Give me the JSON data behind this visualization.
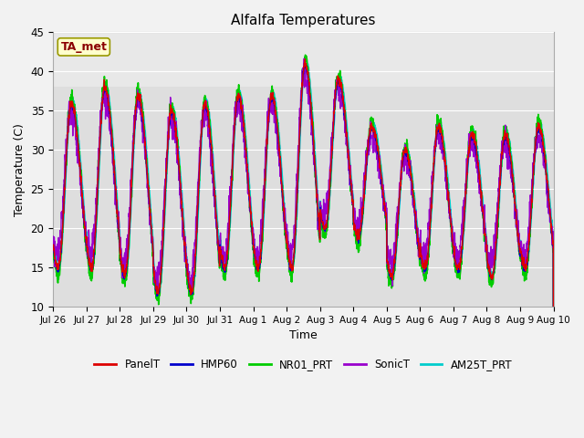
{
  "title": "Alfalfa Temperatures",
  "xlabel": "Time",
  "ylabel": "Temperature (C)",
  "ylim": [
    10,
    45
  ],
  "background_color": "#f2f2f2",
  "plot_bg": "#e8e8e8",
  "annotation_text": "TA_met",
  "annotation_color": "#8b0000",
  "annotation_bg": "#ffffcc",
  "annotation_border": "#999900",
  "series": {
    "PanelT": {
      "color": "#dd0000",
      "lw": 1.0
    },
    "HMP60": {
      "color": "#0000cc",
      "lw": 1.0
    },
    "NR01_PRT": {
      "color": "#00cc00",
      "lw": 1.2
    },
    "SonicT": {
      "color": "#9900cc",
      "lw": 1.0
    },
    "AM25T_PRT": {
      "color": "#00cccc",
      "lw": 1.4
    }
  },
  "tick_labels": [
    "Jul 26",
    "Jul 27",
    "Jul 28",
    "Jul 29",
    "Jul 30",
    "Jul 31",
    "Aug 1",
    "Aug 2",
    "Aug 3",
    "Aug 4",
    "Aug 5",
    "Aug 6",
    "Aug 7",
    "Aug 8",
    "Aug 9",
    "Aug 10"
  ],
  "yticks": [
    10,
    15,
    20,
    25,
    30,
    35,
    40,
    45
  ],
  "day_peaks": [
    36,
    38,
    37,
    35,
    36,
    37,
    37,
    41,
    39,
    33,
    30,
    33,
    32,
    32,
    33
  ],
  "day_troughs": [
    15,
    15,
    14,
    12,
    12,
    15,
    15,
    15,
    20,
    19,
    14,
    15,
    15,
    14,
    15
  ]
}
